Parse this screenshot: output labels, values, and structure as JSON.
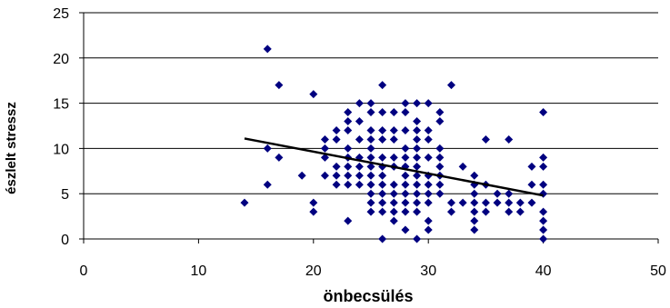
{
  "chart_data": {
    "type": "scatter",
    "xlabel": "önbecsülés",
    "ylabel": "észlelt stressz",
    "xlim": [
      0,
      50
    ],
    "ylim": [
      0,
      25
    ],
    "xticks": [
      0,
      10,
      20,
      30,
      40,
      50
    ],
    "yticks": [
      0,
      5,
      10,
      15,
      20,
      25
    ],
    "grid": "horizontal",
    "marker_color": "#000080",
    "trendline_color": "#000000",
    "trendline": {
      "x": [
        14,
        40
      ],
      "y": [
        11.1,
        4.8
      ]
    },
    "points": [
      [
        14,
        4
      ],
      [
        16,
        21
      ],
      [
        16,
        10
      ],
      [
        16,
        6
      ],
      [
        17,
        17
      ],
      [
        17,
        9
      ],
      [
        19,
        7
      ],
      [
        20,
        16
      ],
      [
        20,
        4
      ],
      [
        20,
        3
      ],
      [
        21,
        11
      ],
      [
        21,
        10
      ],
      [
        21,
        9
      ],
      [
        21,
        7
      ],
      [
        22,
        12
      ],
      [
        22,
        11
      ],
      [
        22,
        8
      ],
      [
        22,
        7
      ],
      [
        22,
        6
      ],
      [
        23,
        14
      ],
      [
        23,
        13
      ],
      [
        23,
        12
      ],
      [
        23,
        10
      ],
      [
        23,
        9
      ],
      [
        23,
        8
      ],
      [
        23,
        7
      ],
      [
        23,
        6
      ],
      [
        23,
        2
      ],
      [
        24,
        15
      ],
      [
        24,
        13
      ],
      [
        24,
        11
      ],
      [
        24,
        9
      ],
      [
        24,
        8
      ],
      [
        24,
        7
      ],
      [
        24,
        6
      ],
      [
        25,
        15
      ],
      [
        25,
        14
      ],
      [
        25,
        12
      ],
      [
        25,
        11
      ],
      [
        25,
        10
      ],
      [
        25,
        9
      ],
      [
        25,
        8
      ],
      [
        25,
        7
      ],
      [
        25,
        6
      ],
      [
        25,
        5
      ],
      [
        25,
        4
      ],
      [
        25,
        3
      ],
      [
        26,
        17
      ],
      [
        26,
        14
      ],
      [
        26,
        12
      ],
      [
        26,
        11
      ],
      [
        26,
        9
      ],
      [
        26,
        8
      ],
      [
        26,
        7
      ],
      [
        26,
        6
      ],
      [
        26,
        5
      ],
      [
        26,
        4
      ],
      [
        26,
        3
      ],
      [
        26,
        0
      ],
      [
        27,
        14
      ],
      [
        27,
        12
      ],
      [
        27,
        11
      ],
      [
        27,
        9
      ],
      [
        27,
        8
      ],
      [
        27,
        6
      ],
      [
        27,
        5
      ],
      [
        27,
        4
      ],
      [
        27,
        3
      ],
      [
        27,
        2
      ],
      [
        28,
        15
      ],
      [
        28,
        14
      ],
      [
        28,
        12
      ],
      [
        28,
        10
      ],
      [
        28,
        9
      ],
      [
        28,
        8
      ],
      [
        28,
        7
      ],
      [
        28,
        6
      ],
      [
        28,
        5
      ],
      [
        28,
        4
      ],
      [
        28,
        3
      ],
      [
        28,
        1
      ],
      [
        29,
        15
      ],
      [
        29,
        13
      ],
      [
        29,
        12
      ],
      [
        29,
        11
      ],
      [
        29,
        10
      ],
      [
        29,
        9
      ],
      [
        29,
        8
      ],
      [
        29,
        7
      ],
      [
        29,
        6
      ],
      [
        29,
        5
      ],
      [
        29,
        4
      ],
      [
        29,
        3
      ],
      [
        29,
        0
      ],
      [
        30,
        15
      ],
      [
        30,
        12
      ],
      [
        30,
        11
      ],
      [
        30,
        9
      ],
      [
        30,
        7
      ],
      [
        30,
        6
      ],
      [
        30,
        5
      ],
      [
        30,
        4
      ],
      [
        30,
        2
      ],
      [
        30,
        1
      ],
      [
        31,
        14
      ],
      [
        31,
        13
      ],
      [
        31,
        10
      ],
      [
        31,
        9
      ],
      [
        31,
        8
      ],
      [
        31,
        7
      ],
      [
        31,
        6
      ],
      [
        31,
        5
      ],
      [
        32,
        17
      ],
      [
        32,
        4
      ],
      [
        32,
        3
      ],
      [
        33,
        8
      ],
      [
        33,
        4
      ],
      [
        34,
        7
      ],
      [
        34,
        6
      ],
      [
        34,
        5
      ],
      [
        34,
        4
      ],
      [
        34,
        3
      ],
      [
        34,
        2
      ],
      [
        34,
        1
      ],
      [
        35,
        11
      ],
      [
        35,
        6
      ],
      [
        35,
        4
      ],
      [
        35,
        3
      ],
      [
        36,
        5
      ],
      [
        36,
        4
      ],
      [
        37,
        11
      ],
      [
        37,
        5
      ],
      [
        37,
        4
      ],
      [
        37,
        3
      ],
      [
        38,
        4
      ],
      [
        38,
        3
      ],
      [
        39,
        8
      ],
      [
        39,
        6
      ],
      [
        39,
        4
      ],
      [
        40,
        14
      ],
      [
        40,
        9
      ],
      [
        40,
        8
      ],
      [
        40,
        6
      ],
      [
        40,
        5
      ],
      [
        40,
        3
      ],
      [
        40,
        2
      ],
      [
        40,
        1
      ],
      [
        40,
        0
      ]
    ]
  }
}
